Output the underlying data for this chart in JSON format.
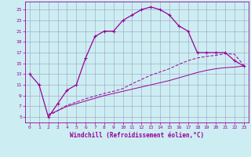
{
  "xlabel": "Windchill (Refroidissement éolien,°C)",
  "background_color": "#cceef2",
  "grid_color": "#aaaacc",
  "line_color": "#990099",
  "x_ticks": [
    0,
    1,
    2,
    3,
    4,
    5,
    6,
    7,
    8,
    9,
    10,
    11,
    12,
    13,
    14,
    15,
    16,
    17,
    18,
    19,
    20,
    21,
    22,
    23
  ],
  "y_ticks": [
    5,
    7,
    9,
    11,
    13,
    15,
    17,
    19,
    21,
    23,
    25
  ],
  "xlim": [
    -0.5,
    23.5
  ],
  "ylim": [
    4.0,
    26.5
  ],
  "curve1_x": [
    0,
    1,
    2,
    3,
    4,
    5,
    6,
    7,
    8,
    9,
    10,
    11,
    12,
    13,
    14,
    15,
    16,
    17,
    18,
    19,
    20,
    21,
    22,
    23
  ],
  "curve1_y": [
    13,
    11,
    5,
    7.5,
    10,
    11,
    16,
    20,
    21,
    21,
    23,
    24,
    25,
    25.5,
    25,
    24,
    22,
    21,
    17,
    17,
    17,
    17,
    15.5,
    14.5
  ],
  "curve2_x": [
    2,
    3,
    4,
    5,
    6,
    7,
    8,
    9,
    10,
    11,
    12,
    13,
    14,
    15,
    16,
    17,
    18,
    19,
    20,
    21,
    22,
    23
  ],
  "curve2_y": [
    5.2,
    6.2,
    7.2,
    7.8,
    8.4,
    8.9,
    9.4,
    9.8,
    10.3,
    11.2,
    12.0,
    12.8,
    13.4,
    14.0,
    14.8,
    15.5,
    16.0,
    16.3,
    16.5,
    16.8,
    16.7,
    14.6
  ],
  "curve3_x": [
    2,
    3,
    4,
    5,
    6,
    7,
    8,
    9,
    10,
    11,
    12,
    13,
    14,
    15,
    16,
    17,
    18,
    19,
    20,
    21,
    22,
    23
  ],
  "curve3_y": [
    5.5,
    6.2,
    7.0,
    7.5,
    8.0,
    8.5,
    9.0,
    9.4,
    9.8,
    10.2,
    10.6,
    11.0,
    11.4,
    11.8,
    12.3,
    12.8,
    13.3,
    13.7,
    14.0,
    14.2,
    14.3,
    14.5
  ]
}
